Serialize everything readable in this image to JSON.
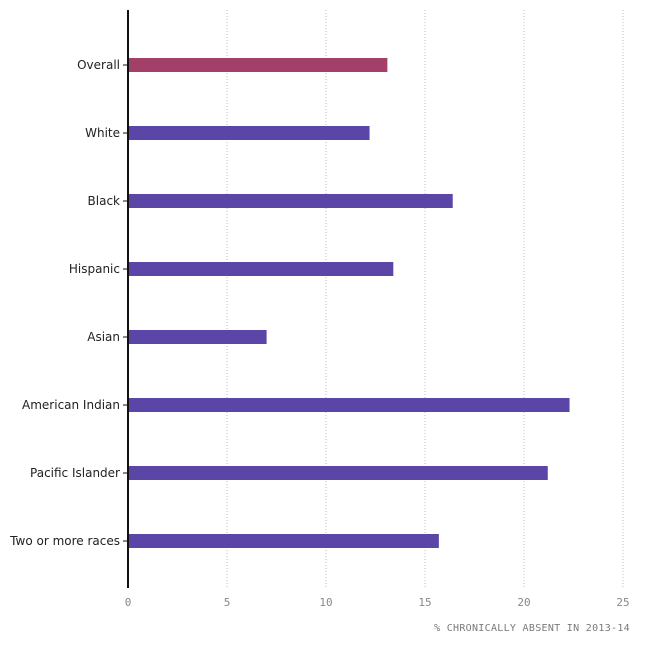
{
  "chart_data": {
    "type": "bar",
    "orientation": "horizontal",
    "categories": [
      "Overall",
      "White",
      "Black",
      "Hispanic",
      "Asian",
      "American Indian",
      "Pacific Islander",
      "Two or more races"
    ],
    "values": [
      13.1,
      12.2,
      16.4,
      13.4,
      7.0,
      22.3,
      21.2,
      15.7
    ],
    "bar_colors": [
      "#a3406a",
      "#5b45a6",
      "#5b45a6",
      "#5b45a6",
      "#5b45a6",
      "#5b45a6",
      "#5b45a6",
      "#5b45a6"
    ],
    "xlabel": "% CHRONICALLY ABSENT IN 2013-14",
    "xlim": [
      0,
      25
    ],
    "xticks": [
      0,
      5,
      10,
      15,
      20,
      25
    ],
    "grid": "vertical dotted",
    "legend": "none"
  }
}
